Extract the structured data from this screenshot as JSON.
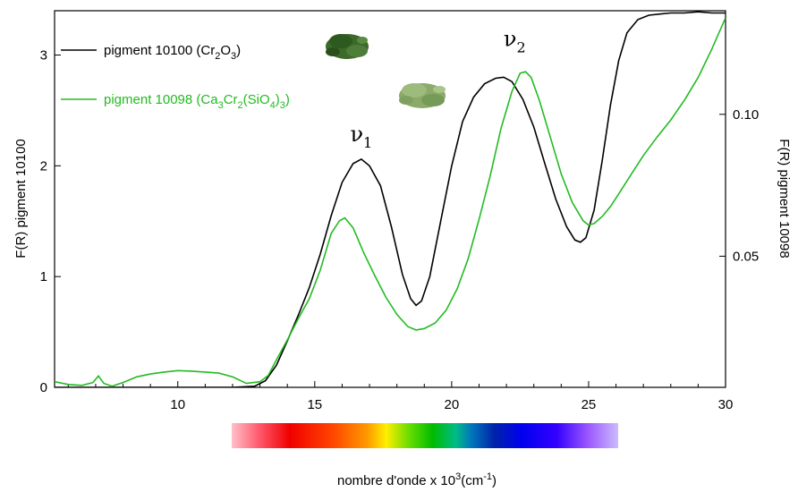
{
  "chart_data": {
    "type": "line",
    "title": "",
    "xlabel": "nombre d'onde x 10",
    "xlabel_sup": "3",
    "xlabel_unit": "(cm",
    "xlabel_unit_sup": "-1",
    "xlabel_close": ")",
    "ylabel_left": "F(R) pigment 10100",
    "ylabel_right": "F(R) pigment 10098",
    "xlim": [
      5.5,
      30
    ],
    "ylim_left": [
      0,
      3.4
    ],
    "ylim_right": [
      0.0038,
      0.1365
    ],
    "xticks": [
      10,
      15,
      20,
      25,
      30
    ],
    "xtick_labels": [
      "10",
      "15",
      "20",
      "25",
      "30"
    ],
    "yticks_left": [
      0,
      1,
      2,
      3
    ],
    "ytick_labels_left": [
      "0",
      "1",
      "2",
      "3"
    ],
    "yticks_right": [
      0.05,
      0.1
    ],
    "ytick_labels_right": [
      "0.05",
      "0.10"
    ],
    "legend_position": "top-left",
    "annotations": [
      {
        "base": "ν",
        "sub": "1",
        "x": 16.7,
        "y": 2.22
      },
      {
        "base": "ν",
        "sub": "2",
        "x": 22.3,
        "y": 3.08
      }
    ],
    "series": [
      {
        "name_parts": [
          [
            "pigment 10100 (Cr",
            0
          ],
          [
            "2",
            -1
          ],
          [
            "O",
            0
          ],
          [
            "3",
            -1
          ],
          [
            ")",
            0
          ]
        ],
        "color": "#000000",
        "axis": "left",
        "x": [
          5.5,
          6.0,
          7.0,
          8.0,
          9.0,
          10.0,
          11.0,
          12.0,
          12.8,
          13.2,
          13.6,
          14.0,
          14.4,
          14.8,
          15.2,
          15.6,
          16.0,
          16.4,
          16.7,
          17.0,
          17.4,
          17.8,
          18.2,
          18.5,
          18.7,
          18.9,
          19.2,
          19.6,
          20.0,
          20.4,
          20.8,
          21.2,
          21.6,
          21.9,
          22.2,
          22.6,
          23.0,
          23.4,
          23.8,
          24.2,
          24.5,
          24.7,
          24.9,
          25.2,
          25.5,
          25.8,
          26.1,
          26.4,
          26.8,
          27.2,
          27.6,
          28.0,
          28.5,
          29.0,
          29.5,
          30.0
        ],
        "y": [
          0.0,
          0.0,
          0.0,
          0.0,
          0.0,
          0.0,
          0.0,
          0.0,
          0.01,
          0.06,
          0.2,
          0.42,
          0.65,
          0.9,
          1.2,
          1.55,
          1.85,
          2.02,
          2.06,
          2.0,
          1.82,
          1.45,
          1.02,
          0.8,
          0.74,
          0.78,
          1.0,
          1.5,
          2.0,
          2.4,
          2.62,
          2.74,
          2.79,
          2.8,
          2.76,
          2.6,
          2.35,
          2.02,
          1.7,
          1.45,
          1.33,
          1.31,
          1.35,
          1.6,
          2.05,
          2.55,
          2.95,
          3.2,
          3.32,
          3.36,
          3.37,
          3.38,
          3.38,
          3.39,
          3.38,
          3.38
        ]
      },
      {
        "name_parts": [
          [
            "pigment 10098 (Ca",
            0
          ],
          [
            "3",
            -1
          ],
          [
            "Cr",
            0
          ],
          [
            "2",
            -1
          ],
          [
            "(SiO",
            0
          ],
          [
            "4",
            -1
          ],
          [
            ")",
            0
          ],
          [
            "3",
            -1
          ],
          [
            ")",
            0
          ]
        ],
        "color": "#22bb22",
        "axis": "right",
        "x": [
          5.5,
          6.0,
          6.5,
          6.9,
          7.1,
          7.3,
          7.6,
          8.0,
          8.5,
          9.0,
          9.5,
          10.0,
          10.5,
          11.0,
          11.5,
          12.0,
          12.5,
          13.0,
          13.3,
          13.6,
          14.0,
          14.4,
          14.8,
          15.2,
          15.6,
          15.9,
          16.1,
          16.4,
          16.8,
          17.2,
          17.6,
          18.0,
          18.4,
          18.7,
          19.0,
          19.4,
          19.8,
          20.2,
          20.6,
          21.0,
          21.4,
          21.8,
          22.2,
          22.5,
          22.7,
          22.9,
          23.2,
          23.6,
          24.0,
          24.4,
          24.8,
          25.0,
          25.2,
          25.5,
          25.8,
          26.2,
          26.6,
          27.0,
          27.5,
          28.0,
          28.5,
          29.0,
          29.5,
          30.0
        ],
        "y": [
          0.0058,
          0.0048,
          0.0045,
          0.0055,
          0.0078,
          0.0052,
          0.0042,
          0.0055,
          0.0075,
          0.0085,
          0.0092,
          0.0097,
          0.0095,
          0.0092,
          0.0088,
          0.0075,
          0.0052,
          0.0058,
          0.008,
          0.0135,
          0.0205,
          0.028,
          0.035,
          0.045,
          0.058,
          0.0625,
          0.0635,
          0.06,
          0.051,
          0.043,
          0.0355,
          0.0295,
          0.0252,
          0.024,
          0.0245,
          0.0265,
          0.031,
          0.0385,
          0.049,
          0.063,
          0.078,
          0.095,
          0.108,
          0.1145,
          0.115,
          0.113,
          0.105,
          0.092,
          0.079,
          0.069,
          0.0625,
          0.061,
          0.0615,
          0.064,
          0.0675,
          0.0735,
          0.0795,
          0.0855,
          0.092,
          0.098,
          0.105,
          0.113,
          0.123,
          0.134
        ]
      }
    ]
  }
}
